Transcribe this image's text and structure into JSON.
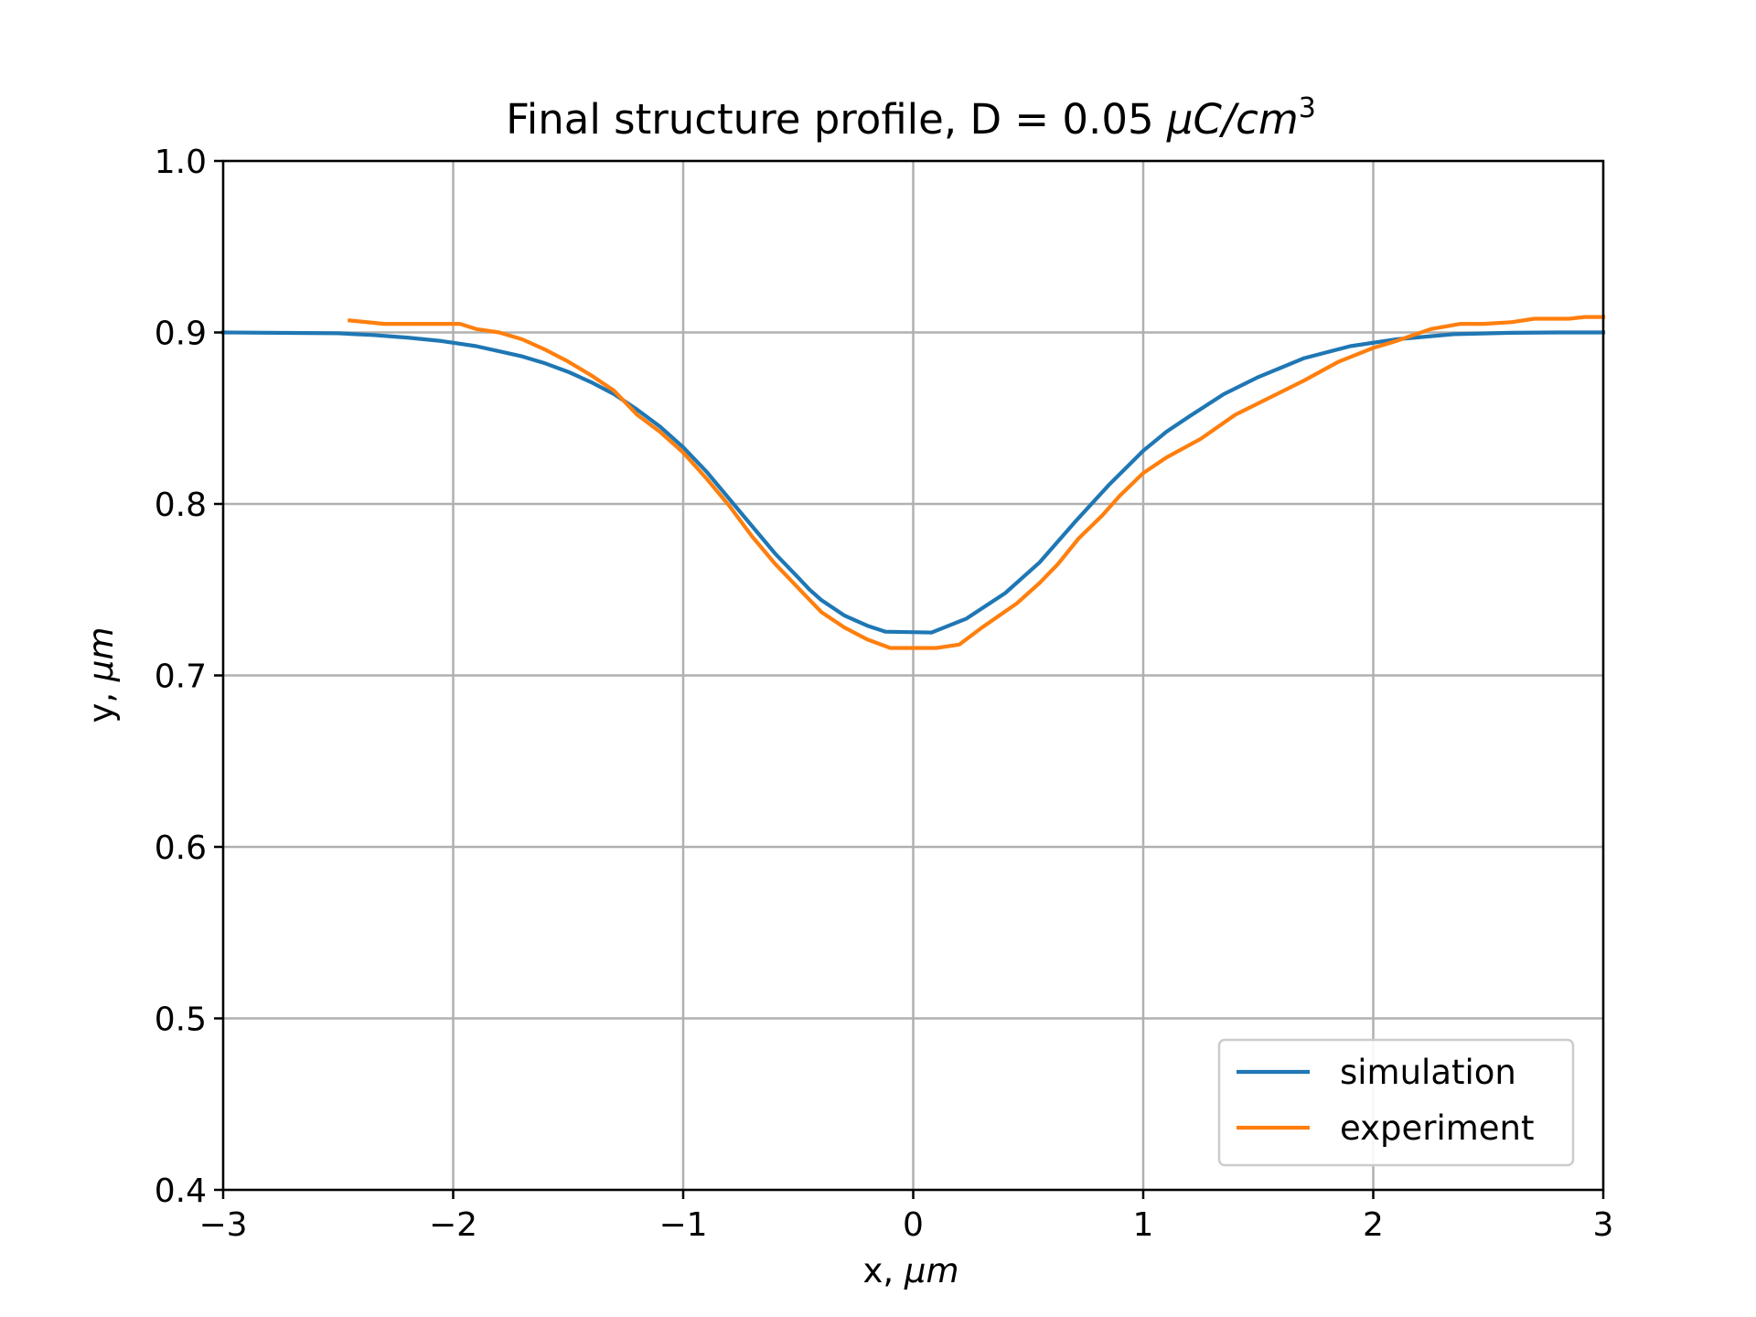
{
  "chart_data": {
    "type": "line",
    "title": "Final structure profile, D = 0.05 ",
    "title_math": "μC/cm",
    "title_sup": "3",
    "xlabel": "x, ",
    "xlabel_math": "μm",
    "ylabel": "y, ",
    "ylabel_math": "μm",
    "xlim": [
      -3,
      3
    ],
    "ylim": [
      0.4,
      1.0
    ],
    "xticks": [
      -3,
      -2,
      -1,
      0,
      1,
      2,
      3
    ],
    "xtick_labels": [
      "−3",
      "−2",
      "−1",
      "0",
      "1",
      "2",
      "3"
    ],
    "yticks": [
      0.4,
      0.5,
      0.6,
      0.7,
      0.8,
      0.9,
      1.0
    ],
    "ytick_labels": [
      "0.4",
      "0.5",
      "0.6",
      "0.7",
      "0.8",
      "0.9",
      "1.0"
    ],
    "grid": true,
    "legend_position": "lower-right",
    "series": [
      {
        "name": "simulation",
        "color": "#1f77b4",
        "x": [
          -3.0,
          -2.5,
          -2.35,
          -2.2,
          -2.05,
          -1.9,
          -1.8,
          -1.7,
          -1.6,
          -1.5,
          -1.4,
          -1.3,
          -1.2,
          -1.1,
          -1.0,
          -0.9,
          -0.8,
          -0.7,
          -0.6,
          -0.5,
          -0.45,
          -0.4,
          -0.3,
          -0.2,
          -0.12,
          0.08,
          0.23,
          0.4,
          0.55,
          0.7,
          0.85,
          1.0,
          1.1,
          1.2,
          1.35,
          1.5,
          1.7,
          1.9,
          2.1,
          2.35,
          2.6,
          2.8,
          3.0
        ],
        "y": [
          0.9,
          0.8995,
          0.8985,
          0.897,
          0.895,
          0.892,
          0.889,
          0.886,
          0.882,
          0.877,
          0.871,
          0.864,
          0.855,
          0.845,
          0.833,
          0.819,
          0.803,
          0.787,
          0.771,
          0.757,
          0.75,
          0.744,
          0.735,
          0.729,
          0.7255,
          0.725,
          0.733,
          0.748,
          0.766,
          0.789,
          0.811,
          0.831,
          0.842,
          0.851,
          0.864,
          0.874,
          0.885,
          0.892,
          0.896,
          0.899,
          0.8998,
          0.9,
          0.9
        ]
      },
      {
        "name": "experiment",
        "color": "#ff7f0e",
        "x": [
          -2.45,
          -2.3,
          -2.15,
          -2.05,
          -1.97,
          -1.9,
          -1.8,
          -1.7,
          -1.6,
          -1.5,
          -1.4,
          -1.3,
          -1.2,
          -1.1,
          -1.0,
          -0.9,
          -0.8,
          -0.7,
          -0.6,
          -0.5,
          -0.4,
          -0.3,
          -0.2,
          -0.1,
          0.0,
          0.1,
          0.2,
          0.3,
          0.45,
          0.55,
          0.63,
          0.72,
          0.82,
          0.9,
          1.0,
          1.1,
          1.25,
          1.4,
          1.55,
          1.7,
          1.85,
          2.0,
          2.1,
          2.25,
          2.38,
          2.48,
          2.6,
          2.7,
          2.85,
          2.92,
          3.0
        ],
        "y": [
          0.907,
          0.905,
          0.905,
          0.905,
          0.905,
          0.902,
          0.9,
          0.896,
          0.89,
          0.883,
          0.875,
          0.866,
          0.852,
          0.842,
          0.83,
          0.815,
          0.799,
          0.781,
          0.765,
          0.751,
          0.737,
          0.728,
          0.721,
          0.716,
          0.716,
          0.716,
          0.718,
          0.728,
          0.742,
          0.754,
          0.765,
          0.78,
          0.793,
          0.805,
          0.818,
          0.827,
          0.838,
          0.852,
          0.862,
          0.872,
          0.883,
          0.891,
          0.895,
          0.902,
          0.905,
          0.905,
          0.906,
          0.908,
          0.908,
          0.909,
          0.909
        ]
      }
    ]
  }
}
